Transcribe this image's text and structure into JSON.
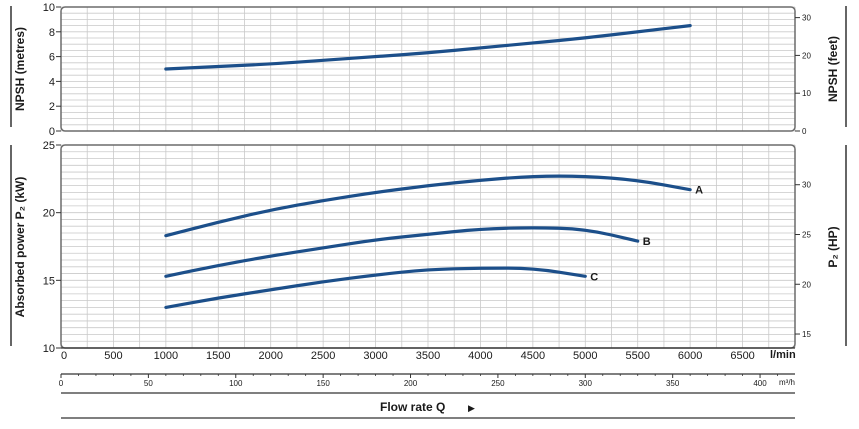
{
  "chart_data": [
    {
      "type": "line",
      "panel": "npsh",
      "ylabel_left": "NPSH  (metres)",
      "ylabel_right": "NPSH  (feet)",
      "ylim": [
        0,
        10
      ],
      "yticks_left": [
        "0",
        "2",
        "4",
        "6",
        "8",
        "10"
      ],
      "yticks_right": [
        "0",
        "10",
        "20",
        "30"
      ],
      "grid": true,
      "series": [
        {
          "name": "",
          "x": [
            1000,
            1500,
            2000,
            2500,
            3000,
            3500,
            4000,
            4500,
            5000,
            5500,
            6000
          ],
          "y": [
            5.0,
            5.2,
            5.4,
            5.7,
            6.0,
            6.3,
            6.7,
            7.1,
            7.5,
            8.0,
            8.5
          ]
        }
      ]
    },
    {
      "type": "line",
      "panel": "power",
      "ylabel_left": "Absorbed power  P₂  (kW)",
      "ylabel_right": "P₂  (HP)",
      "ylim": [
        10,
        25
      ],
      "yticks_left": [
        "10",
        "15",
        "20",
        "25"
      ],
      "yticks_right": [
        "15",
        "20",
        "25",
        "30"
      ],
      "grid": true,
      "series": [
        {
          "name": "A",
          "x": [
            1000,
            1500,
            2000,
            2500,
            3000,
            3500,
            4000,
            4500,
            5000,
            5500,
            6000
          ],
          "y": [
            18.3,
            19.3,
            20.2,
            20.9,
            21.5,
            22.0,
            22.4,
            22.7,
            22.7,
            22.4,
            21.7
          ]
        },
        {
          "name": "B",
          "x": [
            1000,
            1500,
            2000,
            2500,
            3000,
            3500,
            4000,
            4500,
            5000,
            5500
          ],
          "y": [
            15.3,
            16.1,
            16.8,
            17.4,
            18.0,
            18.4,
            18.8,
            18.9,
            18.8,
            17.9
          ]
        },
        {
          "name": "C",
          "x": [
            1000,
            1500,
            2000,
            2500,
            3000,
            3500,
            4000,
            4500,
            5000
          ],
          "y": [
            13.0,
            13.7,
            14.3,
            14.9,
            15.4,
            15.8,
            15.9,
            15.9,
            15.3
          ]
        }
      ]
    }
  ],
  "x_axis_lmin": {
    "ticks": [
      "0",
      "500",
      "1000",
      "1500",
      "2000",
      "2500",
      "3000",
      "3500",
      "4000",
      "4500",
      "5000",
      "5500",
      "6000",
      "6500"
    ],
    "unit": "l/min"
  },
  "x_axis_m3h": {
    "ticks": [
      "0",
      "50",
      "100",
      "150",
      "200",
      "250",
      "300",
      "350",
      "400"
    ],
    "unit": "m³/h"
  },
  "xlabel": "Flow rate Q",
  "xlabel_arrow": "▶",
  "colors": {
    "curve": "#1c4f8a",
    "grid": "#c9c9c9",
    "frame": "#6b6b6b"
  }
}
